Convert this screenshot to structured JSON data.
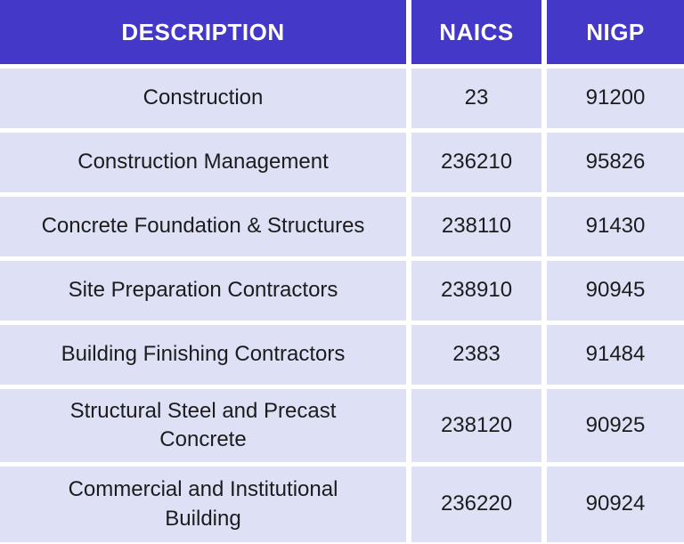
{
  "chart_data": {
    "type": "table",
    "columns": [
      "DESCRIPTION",
      "NAICS",
      "NIGP"
    ],
    "rows": [
      [
        "Construction",
        "23",
        "91200"
      ],
      [
        "Construction Management",
        "236210",
        "95826"
      ],
      [
        "Concrete Foundation & Structures",
        "238110",
        "91430"
      ],
      [
        "Site Preparation Contractors",
        "238910",
        "90945"
      ],
      [
        "Building Finishing Contractors",
        "2383",
        "91484"
      ],
      [
        "Structural Steel and Precast Concrete",
        "238120",
        "90925"
      ],
      [
        "Commercial and Institutional Building",
        "236220",
        "90924"
      ]
    ]
  },
  "colors": {
    "header_bg": "#4438c8",
    "header_text": "#ffffff",
    "row_bg": "#dee1f6",
    "row_text": "#1c1c1c",
    "gutter": "#ffffff"
  }
}
